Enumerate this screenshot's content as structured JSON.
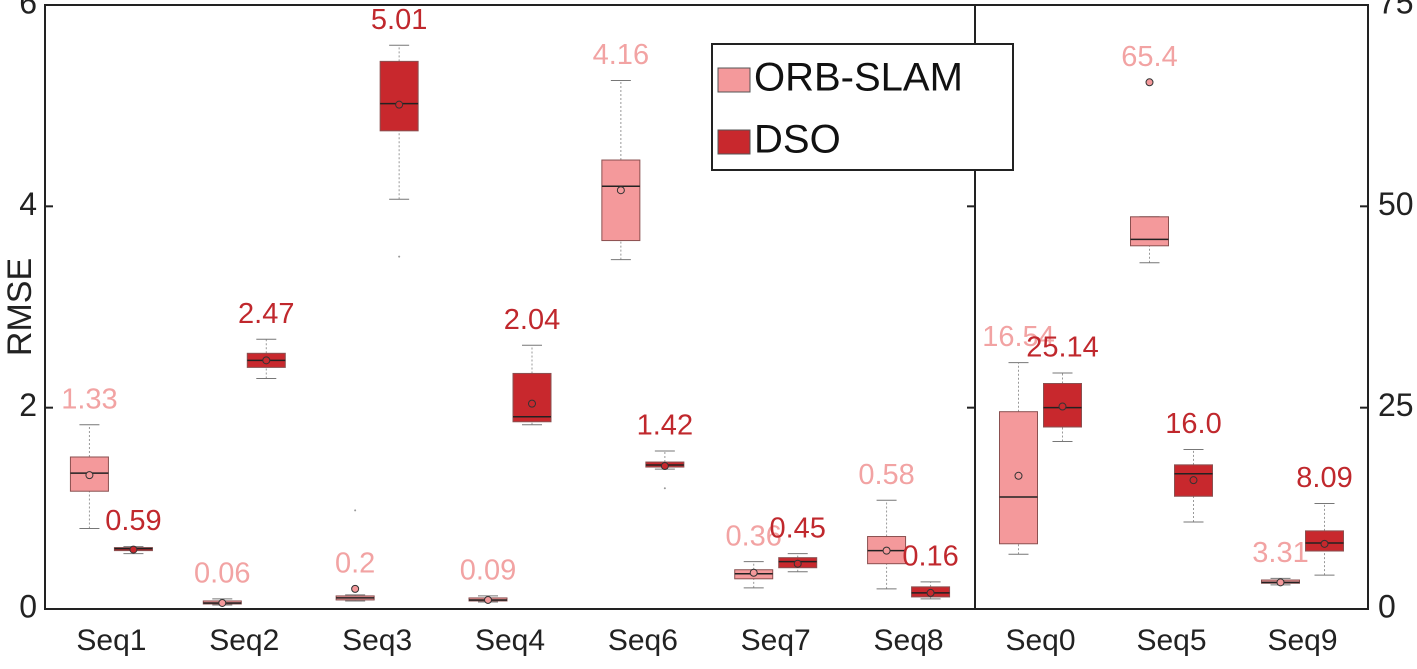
{
  "chart_data": [
    {
      "type": "box",
      "y_label": "RMSE",
      "ylim": [
        0,
        6
      ],
      "yticks": [
        0,
        2,
        4,
        6
      ],
      "yaxis_side": "left",
      "legend": "upper right",
      "categories": [
        "Seq1",
        "Seq2",
        "Seq3",
        "Seq4",
        "Seq6",
        "Seq7",
        "Seq8"
      ],
      "series": [
        {
          "name": "ORB-SLAM",
          "color": "#f4999b",
          "label_color": "#f2a3a3",
          "values": [
            1.33,
            0.06,
            0.2,
            0.09,
            4.16,
            0.36,
            0.58
          ],
          "q1": [
            1.17,
            0.05,
            0.09,
            0.08,
            3.66,
            0.3,
            0.45
          ],
          "median": [
            1.35,
            0.06,
            0.11,
            0.09,
            4.2,
            0.35,
            0.58
          ],
          "q3": [
            1.51,
            0.08,
            0.13,
            0.11,
            4.46,
            0.39,
            0.72
          ],
          "whisker_low": [
            0.8,
            0.04,
            0.08,
            0.07,
            3.47,
            0.21,
            0.2
          ],
          "whisker_high": [
            1.83,
            0.1,
            0.14,
            0.13,
            5.25,
            0.47,
            1.08
          ],
          "outliers": [
            [],
            [],
            [
              0.98
            ],
            [],
            [],
            [],
            []
          ]
        },
        {
          "name": "DSO",
          "color": "#c8282d",
          "label_color": "#c0282d",
          "values": [
            0.59,
            2.47,
            5.01,
            2.04,
            1.42,
            0.45,
            0.16
          ],
          "q1": [
            0.58,
            2.4,
            4.75,
            1.86,
            1.41,
            0.41,
            0.12
          ],
          "median": [
            0.6,
            2.47,
            5.02,
            1.91,
            1.43,
            0.47,
            0.16
          ],
          "q3": [
            0.61,
            2.54,
            5.44,
            2.34,
            1.46,
            0.51,
            0.22
          ],
          "whisker_low": [
            0.55,
            2.29,
            4.07,
            1.83,
            1.39,
            0.37,
            0.1
          ],
          "whisker_high": [
            0.62,
            2.68,
            5.6,
            2.62,
            1.57,
            0.55,
            0.27
          ],
          "outliers": [
            [],
            [],
            [
              3.5
            ],
            [],
            [
              1.2
            ],
            [],
            []
          ]
        }
      ]
    },
    {
      "type": "box",
      "ylim": [
        0,
        75
      ],
      "yticks": [
        0,
        25,
        50,
        75
      ],
      "yaxis_side": "right",
      "categories": [
        "Seq0",
        "Seq5",
        "Seq9"
      ],
      "series": [
        {
          "color": "#f4999b",
          "label_color": "#f2a3a3",
          "values": [
            16.54,
            65.4,
            3.31
          ],
          "q1": [
            8.1,
            45.1,
            3.2
          ],
          "median": [
            13.9,
            45.9,
            3.3
          ],
          "q3": [
            24.5,
            48.7,
            3.6
          ],
          "whisker_low": [
            6.8,
            43,
            3.0
          ],
          "whisker_high": [
            30.6,
            48.7,
            3.8
          ],
          "outliers": [
            [],
            [],
            []
          ]
        },
        {
          "color": "#c8282d",
          "label_color": "#c0282d",
          "values": [
            25.14,
            16,
            8.09
          ],
          "value_labels": [
            "25.14",
            "16.0",
            "8.09"
          ],
          "q1": [
            22.6,
            14,
            7.2
          ],
          "median": [
            25,
            16.8,
            8.2
          ],
          "q3": [
            28,
            17.9,
            9.7
          ],
          "whisker_low": [
            20.8,
            10.8,
            4.2
          ],
          "whisker_high": [
            29.3,
            19.8,
            13.1
          ],
          "outliers": [
            [],
            [],
            []
          ]
        }
      ]
    }
  ]
}
